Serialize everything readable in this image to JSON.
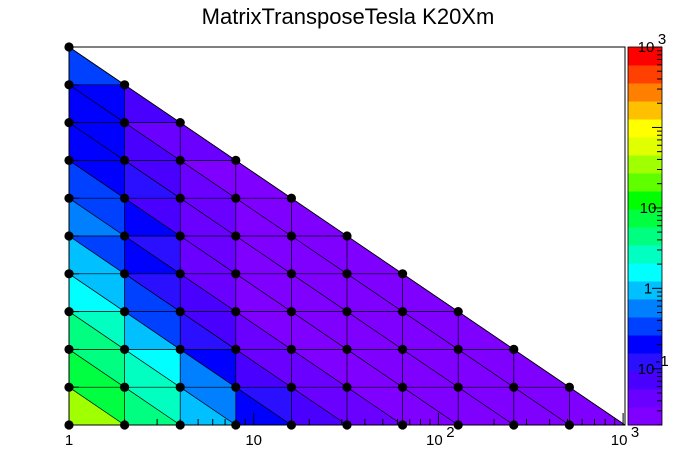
{
  "chart_data": {
    "type": "heatmap",
    "title": "MatrixTransposeTesla K20Xm",
    "x_axis": {
      "scale": "log",
      "range": [
        1,
        1024
      ],
      "tick_labels": [
        {
          "value": 1,
          "text": "1"
        },
        {
          "value": 10,
          "text": "10"
        },
        {
          "value": 100,
          "base": "10",
          "exp": "2"
        },
        {
          "value": 1000,
          "base": "10",
          "exp": "3"
        }
      ]
    },
    "y_axis": {
      "levels": 11,
      "tick_labels": []
    },
    "color_scale": {
      "scale": "log",
      "range": [
        0.02,
        1000
      ],
      "tick_labels": [
        {
          "value": 1000,
          "base": "10",
          "exp": "3"
        },
        {
          "value": 10,
          "text": "10"
        },
        {
          "value": 1,
          "text": "1"
        },
        {
          "value": 0.1,
          "base": "10",
          "exp": "-1"
        }
      ]
    },
    "grid": "triangulated lattice",
    "points_per_row": [
      11,
      10,
      9,
      8,
      7,
      6,
      5,
      4,
      3,
      2,
      1
    ],
    "intensity_rows": [
      [
        200,
        8,
        3,
        0.4,
        0.12,
        0.06,
        0.03,
        0.03,
        0.03,
        0.03,
        0.03
      ],
      [
        20,
        5,
        1.5,
        0.15,
        0.05,
        0.03,
        0.03,
        0.03,
        0.03,
        0.03
      ],
      [
        6,
        3,
        0.5,
        0.06,
        0.03,
        0.03,
        0.03,
        0.03,
        0.03
      ],
      [
        3,
        1,
        0.1,
        0.04,
        0.03,
        0.03,
        0.03,
        0.03
      ],
      [
        1.5,
        0.4,
        0.06,
        0.03,
        0.03,
        0.03,
        0.03
      ],
      [
        0.7,
        0.3,
        0.06,
        0.03,
        0.03,
        0.03
      ],
      [
        0.5,
        0.25,
        0.05,
        0.03,
        0.03
      ],
      [
        0.4,
        0.15,
        0.04,
        0.03
      ],
      [
        0.3,
        0.1,
        0.04
      ],
      [
        0.3,
        0.2
      ],
      [
        0.4
      ]
    ]
  },
  "palette": [
    "#8000ff",
    "#6a00ff",
    "#4a00ff",
    "#2a10ff",
    "#0000ff",
    "#0040ff",
    "#0080ff",
    "#00c0ff",
    "#00ffff",
    "#00ffc0",
    "#00ff80",
    "#00ff40",
    "#00ff00",
    "#60ff00",
    "#a0ff00",
    "#e0ff00",
    "#ffff00",
    "#ffc000",
    "#ff8000",
    "#ff4000",
    "#ff0000"
  ]
}
